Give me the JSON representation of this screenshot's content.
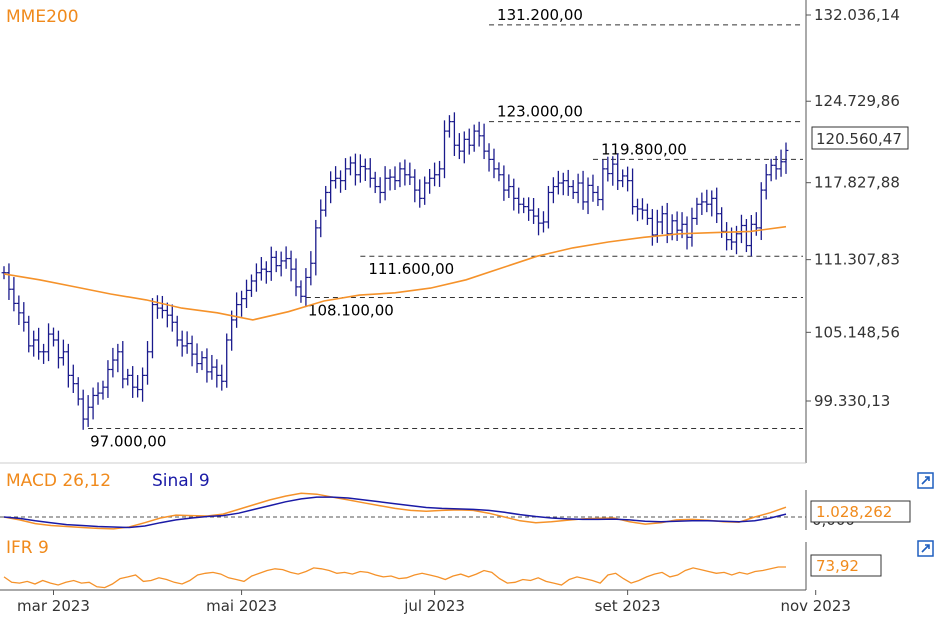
{
  "chart_data": [
    {
      "type": "ohlc",
      "legend": "MME200",
      "y_ticks": [
        "132.036,14",
        "124.729,86",
        "117.827,88",
        "111.307,83",
        "105.148,56",
        "99.330,13"
      ],
      "y_tick_values": [
        132036.14,
        124729.86,
        117827.88,
        111307.83,
        105148.56,
        99330.13
      ],
      "last_value_label": "120.560,47",
      "last_value": 120560.47,
      "ylim": [
        94000,
        134000
      ],
      "x_labels": [
        "mar 2023",
        "mai 2023",
        "jul 2023",
        "set 2023",
        "nov 2023"
      ],
      "x_label_positions": [
        10,
        48,
        87,
        126,
        164
      ],
      "levels": [
        {
          "label": "131.200,00",
          "value": 131200,
          "from": 98
        },
        {
          "label": "123.000,00",
          "value": 123000,
          "from": 98
        },
        {
          "label": "119.800,00",
          "value": 119800,
          "from": 119
        },
        {
          "label": "111.600,00",
          "value": 111600,
          "from": 72
        },
        {
          "label": "108.100,00",
          "value": 108100,
          "from": 61
        },
        {
          "label": "97.000,00",
          "value": 97000,
          "from": 17
        }
      ],
      "price_close": [
        110200,
        108800,
        107600,
        106800,
        106000,
        104000,
        104500,
        103500,
        103500,
        105000,
        104500,
        103000,
        103500,
        101500,
        100800,
        99500,
        97800,
        98800,
        99800,
        100000,
        100500,
        102000,
        102800,
        103500,
        101200,
        101500,
        100500,
        100300,
        101500,
        103500,
        107500,
        107200,
        107000,
        106600,
        106000,
        104500,
        104000,
        104200,
        103300,
        102500,
        103000,
        101800,
        102200,
        101500,
        101000,
        104500,
        106200,
        107500,
        108000,
        108700,
        109500,
        110200,
        110500,
        110300,
        111500,
        110800,
        111200,
        111400,
        110500,
        109000,
        108200,
        109800,
        111000,
        114000,
        115500,
        117000,
        118000,
        118200,
        118000,
        119000,
        119500,
        118500,
        119200,
        119000,
        118200,
        117500,
        117000,
        118200,
        118300,
        118000,
        119000,
        118500,
        118300,
        117200,
        116500,
        117800,
        118200,
        118500,
        119000,
        122200,
        123000,
        121000,
        120500,
        121500,
        121000,
        122200,
        121800,
        120500,
        119800,
        119000,
        118500,
        117200,
        117500,
        116500,
        116000,
        115800,
        115500,
        115000,
        114400,
        114500,
        117000,
        117500,
        117800,
        118000,
        117500,
        117000,
        117800,
        116200,
        117600,
        117000,
        116400,
        119000,
        118600,
        119400,
        118000,
        118400,
        118000,
        115800,
        115600,
        115500,
        114800,
        113400,
        114500,
        115200,
        113500,
        114600,
        113800,
        114300,
        113200,
        114800,
        116000,
        116200,
        116000,
        116500,
        115200,
        113700,
        113000,
        112800,
        113500,
        114200,
        112500,
        114300,
        114000,
        117200,
        118500,
        119300,
        119000,
        119600,
        120560
      ],
      "series": [
        {
          "name": "MME200",
          "color": "#f5922a",
          "values": [
            110100,
            109600,
            109000,
            108400,
            107900,
            107200,
            106800,
            106200,
            106900,
            107800,
            108300,
            108500,
            108900,
            109600,
            110600,
            111600,
            112300,
            112800,
            113200,
            113500,
            113600,
            113700,
            114100
          ]
        }
      ]
    },
    {
      "type": "line",
      "title": "MACD 26,12",
      "signal_title": "Sinal 9",
      "value_label": "1.028,262",
      "zero_label": "0,000",
      "series": [
        {
          "name": "MACD 26,12",
          "color": "#f5922a",
          "values": [
            0.0,
            -0.3,
            -0.7,
            -0.9,
            -1.0,
            -1.1,
            -1.2,
            -1.25,
            -1.05,
            -0.6,
            -0.1,
            0.2,
            0.15,
            0.1,
            0.3,
            0.8,
            1.3,
            1.8,
            2.2,
            2.5,
            2.4,
            2.1,
            1.8,
            1.5,
            1.2,
            0.9,
            0.7,
            0.6,
            0.7,
            0.75,
            0.7,
            0.4,
            0.0,
            -0.4,
            -0.6,
            -0.5,
            -0.35,
            -0.2,
            -0.15,
            -0.1,
            -0.5,
            -0.75,
            -0.6,
            -0.3,
            -0.25,
            -0.35,
            -0.5,
            -0.55,
            0.0,
            0.45,
            1.03
          ]
        },
        {
          "name": "Sinal 9",
          "color": "#1a1aa6",
          "values": [
            0.0,
            -0.15,
            -0.4,
            -0.6,
            -0.8,
            -0.9,
            -1.0,
            -1.05,
            -1.1,
            -0.95,
            -0.6,
            -0.3,
            -0.1,
            0.05,
            0.15,
            0.4,
            0.8,
            1.2,
            1.6,
            1.9,
            2.1,
            2.1,
            2.0,
            1.8,
            1.6,
            1.4,
            1.2,
            1.0,
            0.9,
            0.85,
            0.8,
            0.7,
            0.5,
            0.25,
            0.05,
            -0.1,
            -0.2,
            -0.25,
            -0.25,
            -0.22,
            -0.3,
            -0.45,
            -0.5,
            -0.45,
            -0.4,
            -0.4,
            -0.45,
            -0.5,
            -0.4,
            -0.1,
            0.3
          ]
        }
      ]
    },
    {
      "type": "line",
      "title": "IFR 9",
      "value_label": "73,92",
      "series": [
        {
          "name": "IFR 9",
          "color": "#f5922a",
          "values": [
            52,
            40,
            38,
            42,
            36,
            44,
            38,
            34,
            40,
            44,
            38,
            40,
            30,
            28,
            36,
            48,
            52,
            56,
            42,
            44,
            50,
            46,
            40,
            36,
            44,
            56,
            60,
            62,
            58,
            50,
            46,
            42,
            54,
            60,
            66,
            70,
            68,
            62,
            58,
            64,
            72,
            70,
            66,
            60,
            62,
            58,
            64,
            62,
            56,
            52,
            54,
            48,
            50,
            56,
            60,
            56,
            52,
            46,
            54,
            58,
            52,
            58,
            66,
            62,
            48,
            38,
            40,
            46,
            44,
            50,
            42,
            38,
            34,
            46,
            52,
            48,
            44,
            38,
            56,
            60,
            48,
            38,
            44,
            52,
            58,
            62,
            52,
            56,
            66,
            72,
            68,
            64,
            60,
            62,
            56,
            62,
            58,
            64,
            66,
            70,
            74,
            73.92
          ]
        }
      ]
    }
  ],
  "icons": {
    "macd_popout": "popout-icon",
    "ifr_popout": "popout-icon"
  }
}
